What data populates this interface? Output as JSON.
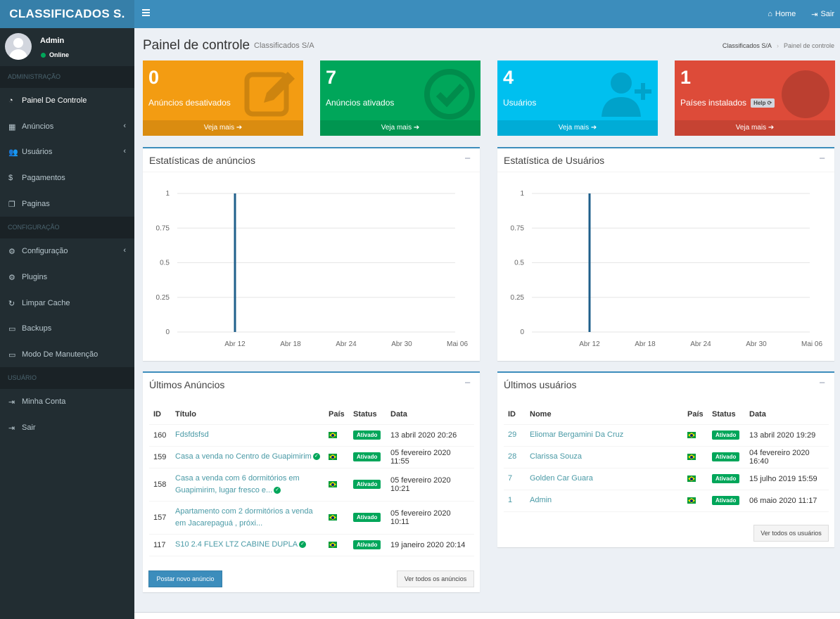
{
  "header": {
    "logo": "CLASSIFICADOS S.",
    "home_label": "Home",
    "logout_label": "Sair"
  },
  "sidebar": {
    "user": {
      "name": "Admin",
      "status": "Online"
    },
    "sections": {
      "admin": "ADMINISTRAÇÃO",
      "config": "CONFIGURAÇÃO",
      "user": "USUÁRIO"
    },
    "items": [
      {
        "label": "Painel De Controle",
        "icon": "dashboard-icon"
      },
      {
        "label": "Anúncios",
        "icon": "table-icon"
      },
      {
        "label": "Usuários",
        "icon": "users-icon"
      },
      {
        "label": "Pagamentos",
        "icon": "dollar-icon"
      },
      {
        "label": "Paginas",
        "icon": "copy-icon"
      },
      {
        "label": "Configuração",
        "icon": "gear-icon"
      },
      {
        "label": "Plugins",
        "icon": "cogs-icon"
      },
      {
        "label": "Limpar Cache",
        "icon": "refresh-icon"
      },
      {
        "label": "Backups",
        "icon": "hdd-icon"
      },
      {
        "label": "Modo De Manutenção",
        "icon": "hdd-icon"
      },
      {
        "label": "Minha Conta",
        "icon": "sign-in-icon"
      },
      {
        "label": "Sair",
        "icon": "sign-out-icon"
      }
    ]
  },
  "content_header": {
    "title": "Painel de controle",
    "subtitle": "Classificados S/A",
    "breadcrumb": [
      "Classificados S/A",
      "Painel de controle"
    ]
  },
  "info_boxes": [
    {
      "value": "0",
      "label": "Anúncios desativados",
      "footer": "Veja mais",
      "color": "#f39c12",
      "icon": "edit-icon"
    },
    {
      "value": "7",
      "label": "Anúncios ativados",
      "footer": "Veja mais",
      "color": "#00a65a",
      "icon": "check-circle-icon"
    },
    {
      "value": "4",
      "label": "Usuários",
      "footer": "Veja mais",
      "color": "#00c0ef",
      "icon": "user-plus-icon"
    },
    {
      "value": "1",
      "label": "Países instalados",
      "help": "Help",
      "footer": "Veja mais",
      "color": "#dd4b39",
      "icon": "globe-icon"
    }
  ],
  "panels": {
    "ads_stats_title": "Estatísticas de anúncios",
    "users_stats_title": "Estatística de Usuários",
    "latest_ads_title": "Últimos Anúncios",
    "latest_users_title": "Últimos usuários"
  },
  "chart_data": [
    {
      "type": "bar",
      "x": [
        "Abr 12",
        "Abr 18",
        "Abr 24",
        "Abr 30",
        "Mai 06"
      ],
      "yticks": [
        "0",
        "0.25",
        "0.5",
        "0.75",
        "1"
      ],
      "ylim": [
        0,
        1
      ],
      "bars": [
        {
          "x": "Abr 12",
          "value": 1
        }
      ],
      "grid": true,
      "color": "#1f5f8b"
    },
    {
      "type": "bar",
      "x": [
        "Abr 12",
        "Abr 18",
        "Abr 24",
        "Abr 30",
        "Mai 06"
      ],
      "yticks": [
        "0",
        "0.25",
        "0.5",
        "0.75",
        "1"
      ],
      "ylim": [
        0,
        1
      ],
      "bars": [
        {
          "x": "Abr 12",
          "value": 1
        }
      ],
      "grid": true,
      "color": "#1f5f8b"
    }
  ],
  "ads_table": {
    "headers": [
      "ID",
      "Título",
      "País",
      "Status",
      "Data"
    ],
    "rows": [
      {
        "id": "160",
        "title": "Fdsfdsfsd",
        "verified": false,
        "status": "Ativado",
        "date": "13 abril 2020 20:26"
      },
      {
        "id": "159",
        "title": "Casa a venda no Centro de Guapimirim",
        "verified": true,
        "status": "Ativado",
        "date": "05 fevereiro 2020 11:55"
      },
      {
        "id": "158",
        "title": "Casa a venda com 6 dormitórios em Guapimirim, lugar fresco e...",
        "verified": true,
        "status": "Ativado",
        "date": "05 fevereiro 2020 10:21"
      },
      {
        "id": "157",
        "title": "Apartamento com 2 dormitórios a venda em Jacarepaguá , próxi...",
        "verified": false,
        "status": "Ativado",
        "date": "05 fevereiro 2020 10:11"
      },
      {
        "id": "117",
        "title": "S10 2.4 FLEX LTZ CABINE DUPLA",
        "verified": true,
        "status": "Ativado",
        "date": "19 janeiro 2020 20:14"
      }
    ],
    "post_button": "Postar novo anúncio",
    "view_all_button": "Ver todos os anúncios"
  },
  "users_table": {
    "headers": [
      "ID",
      "Nome",
      "País",
      "Status",
      "Data"
    ],
    "rows": [
      {
        "id": "29",
        "name": "Eliomar Bergamini Da Cruz",
        "status": "Ativado",
        "date": "13 abril 2020 19:29"
      },
      {
        "id": "28",
        "name": "Clarissa Souza",
        "status": "Ativado",
        "date": "04 fevereiro 2020 16:40"
      },
      {
        "id": "7",
        "name": "Golden Car Guara",
        "status": "Ativado",
        "date": "15 julho 2019 15:59"
      },
      {
        "id": "1",
        "name": "Admin",
        "status": "Ativado",
        "date": "06 maio 2020 11:17"
      }
    ],
    "view_all_button": "Ver todos os usuários"
  }
}
